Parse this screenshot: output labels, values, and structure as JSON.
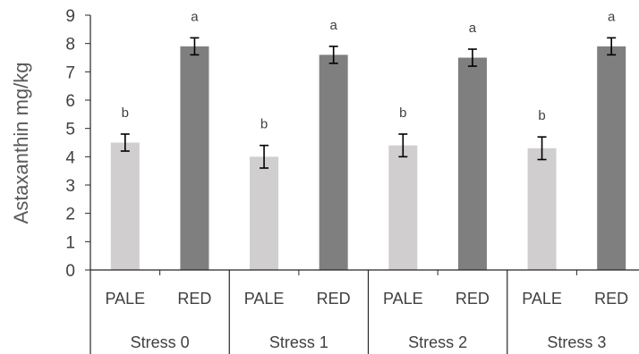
{
  "chart_data": {
    "type": "bar",
    "ylabel": "Astaxanthin mg/kg",
    "ylim": [
      0,
      9
    ],
    "yticks": [
      "0",
      "1",
      "2",
      "3",
      "4",
      "5",
      "6",
      "7",
      "8",
      "9"
    ],
    "grid": false,
    "groups": [
      {
        "name": "Stress 0",
        "bars": [
          {
            "category": "PALE",
            "value": 4.5,
            "error": 0.3,
            "letter": "b",
            "color": "#d0cece"
          },
          {
            "category": "RED",
            "value": 7.9,
            "error": 0.3,
            "letter": "a",
            "color": "#7f7f7f"
          }
        ]
      },
      {
        "name": "Stress 1",
        "bars": [
          {
            "category": "PALE",
            "value": 4.0,
            "error": 0.4,
            "letter": "b",
            "color": "#d0cece"
          },
          {
            "category": "RED",
            "value": 7.6,
            "error": 0.3,
            "letter": "a",
            "color": "#7f7f7f"
          }
        ]
      },
      {
        "name": "Stress 2",
        "bars": [
          {
            "category": "PALE",
            "value": 4.4,
            "error": 0.4,
            "letter": "b",
            "color": "#d0cece"
          },
          {
            "category": "RED",
            "value": 7.5,
            "error": 0.3,
            "letter": "a",
            "color": "#7f7f7f"
          }
        ]
      },
      {
        "name": "Stress 3",
        "bars": [
          {
            "category": "PALE",
            "value": 4.3,
            "error": 0.4,
            "letter": "b",
            "color": "#d0cece"
          },
          {
            "category": "RED",
            "value": 7.9,
            "error": 0.3,
            "letter": "a",
            "color": "#7f7f7f"
          }
        ]
      }
    ]
  }
}
